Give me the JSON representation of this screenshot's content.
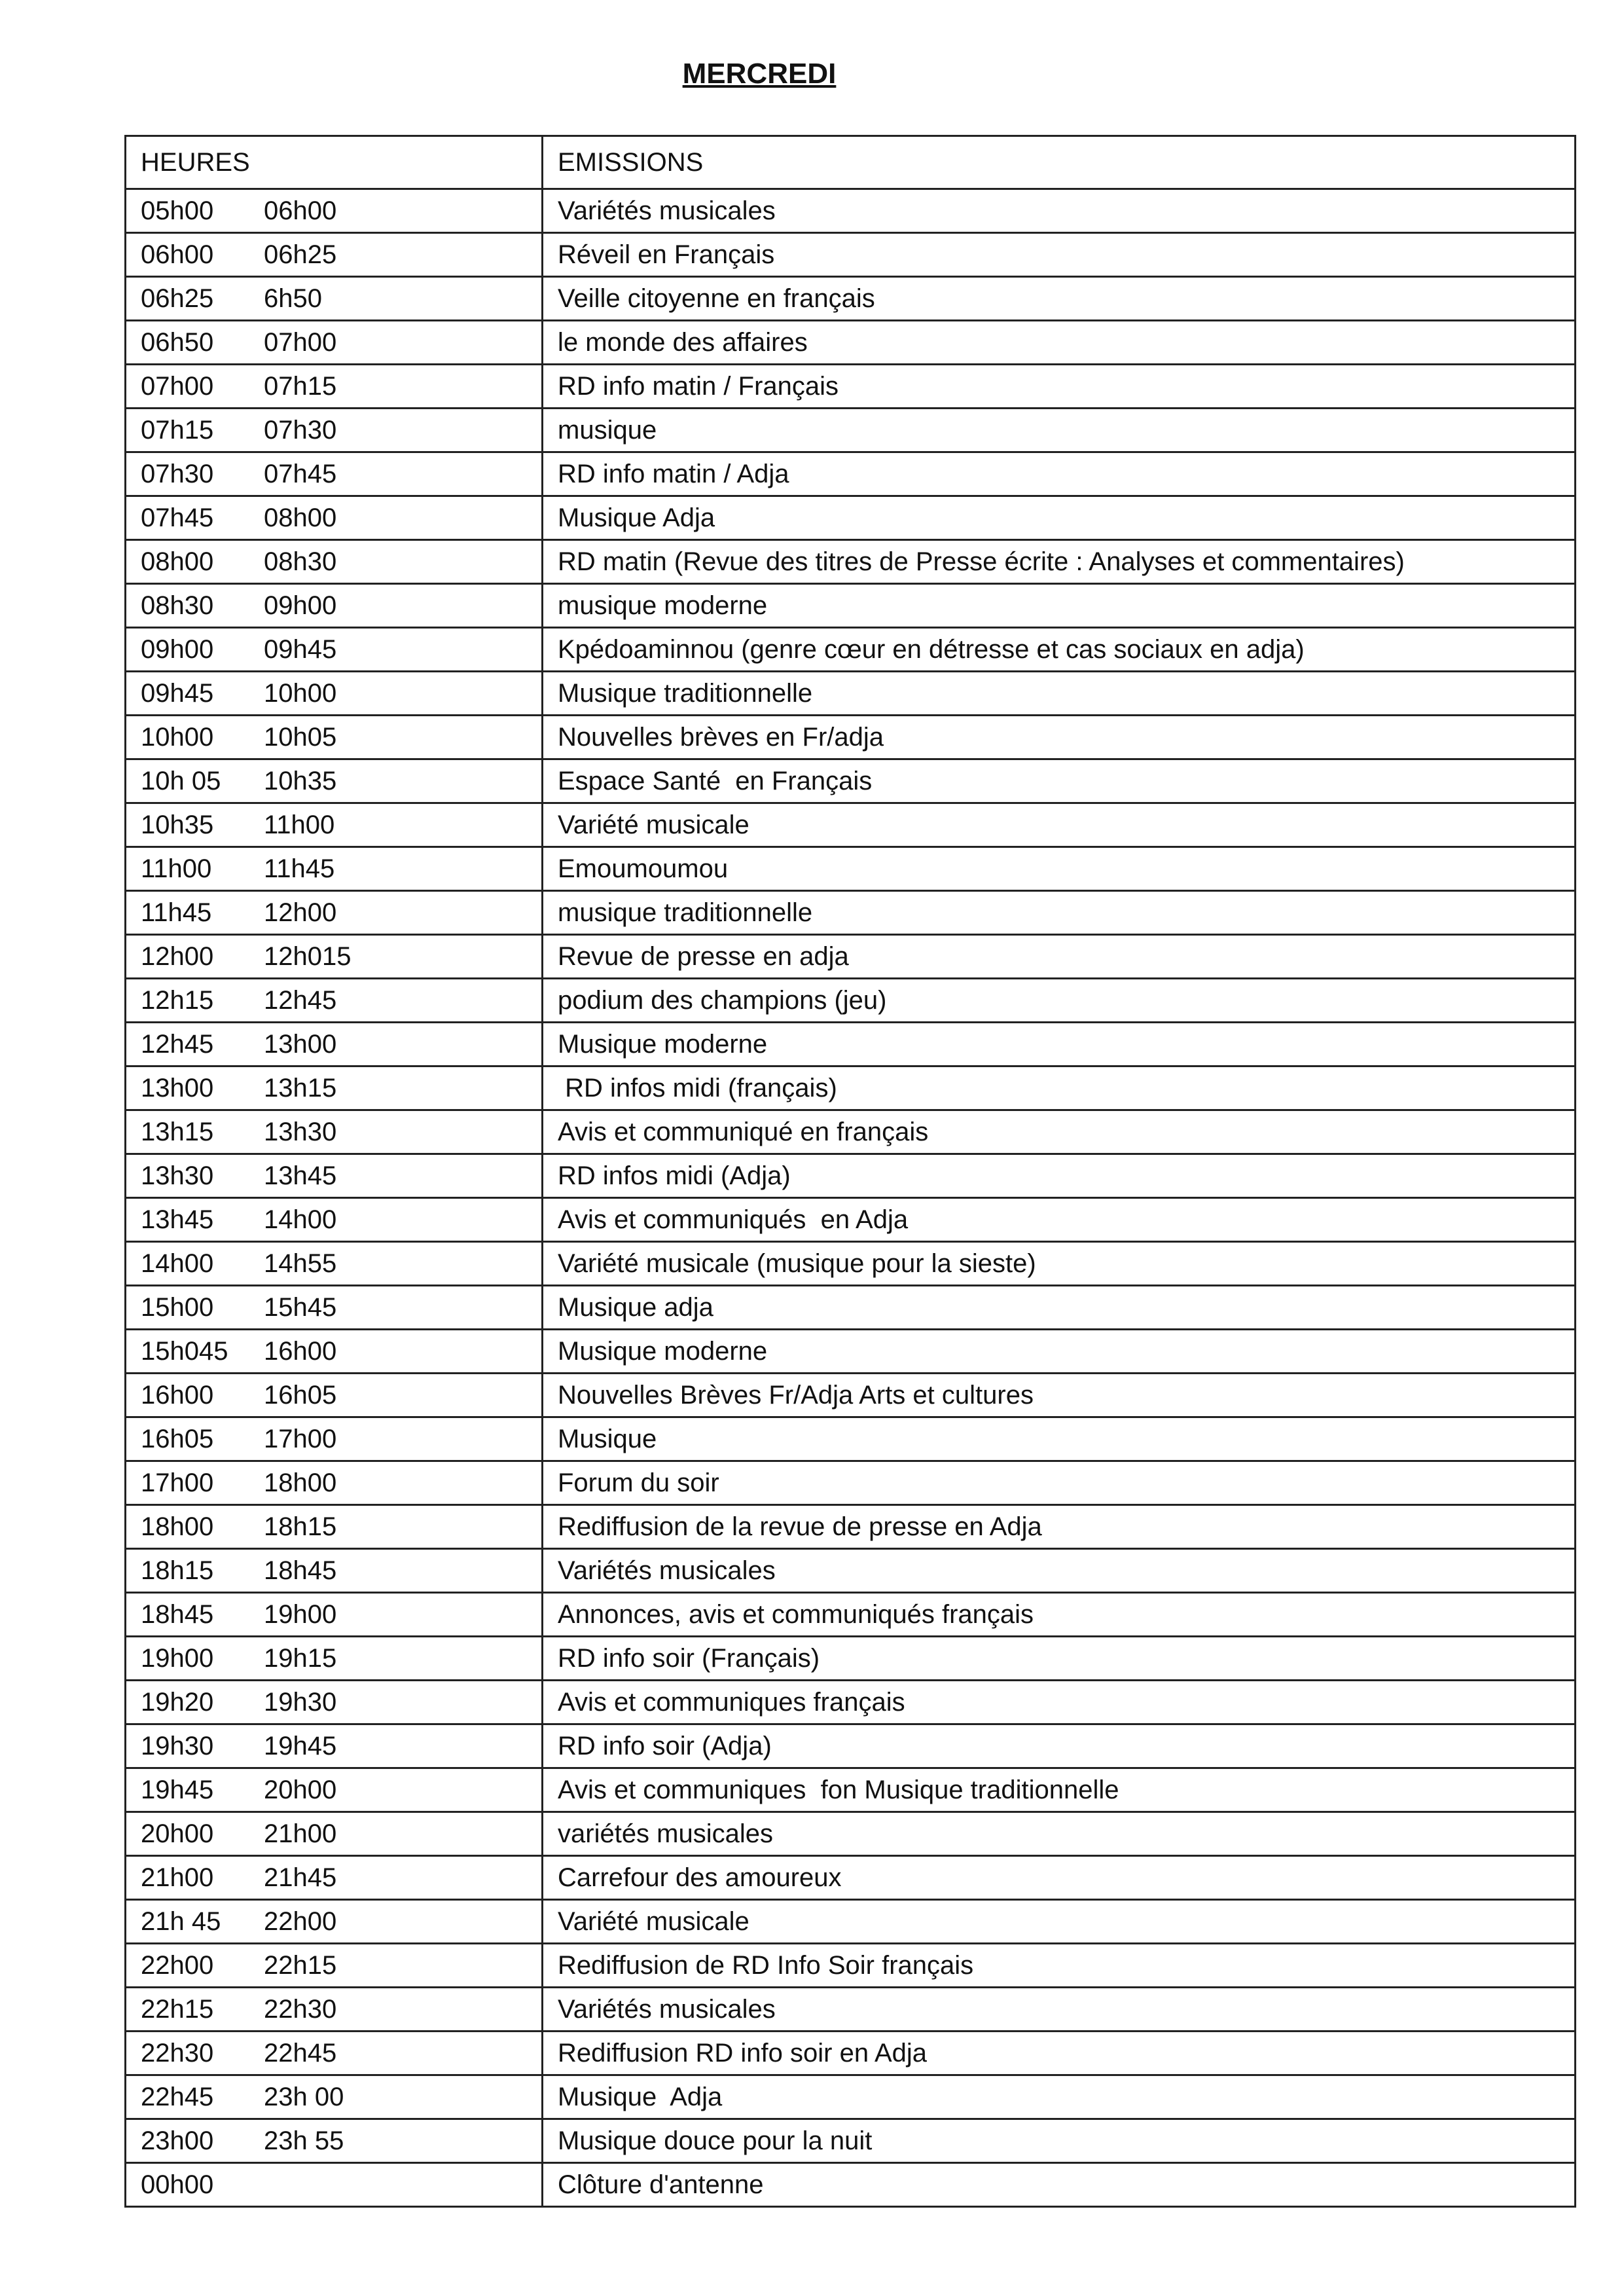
{
  "title": "MERCREDI",
  "table": {
    "headers": [
      "HEURES",
      "EMISSIONS"
    ],
    "rows": [
      {
        "start": "05h00",
        "end": "06h00",
        "emission": "Variétés musicales"
      },
      {
        "start": "06h00",
        "end": "06h25",
        "emission": "Réveil en Français"
      },
      {
        "start": "06h25",
        "end": "6h50",
        "emission": "Veille citoyenne en français"
      },
      {
        "start": "06h50",
        "end": "07h00",
        "emission": "le monde des affaires"
      },
      {
        "start": "07h00",
        "end": "07h15",
        "emission": "RD info matin / Français"
      },
      {
        "start": "07h15",
        "end": "07h30",
        "emission": "musique"
      },
      {
        "start": "07h30",
        "end": "07h45",
        "emission": "RD info matin / Adja"
      },
      {
        "start": "07h45",
        "end": "08h00",
        "emission": "Musique Adja"
      },
      {
        "start": "08h00",
        "end": "08h30",
        "emission": "RD matin (Revue des titres de Presse écrite : Analyses et commentaires)"
      },
      {
        "start": "08h30",
        "end": "09h00",
        "emission": "musique moderne"
      },
      {
        "start": "09h00",
        "end": "09h45",
        "emission": "Kpédoaminnou (genre cœur en détresse et cas sociaux en adja)"
      },
      {
        "start": "09h45",
        "end": "10h00",
        "emission": "Musique traditionnelle"
      },
      {
        "start": "10h00",
        "end": "10h05",
        "emission": "Nouvelles brèves en Fr/adja"
      },
      {
        "start": "10h 05",
        "end": "10h35",
        "emission": "Espace Santé  en Français"
      },
      {
        "start": "10h35",
        "end": "11h00",
        "emission": "Variété musicale"
      },
      {
        "start": "11h00",
        "end": "11h45",
        "emission": "Emoumoumou"
      },
      {
        "start": "11h45",
        "end": "12h00",
        "emission": "musique traditionnelle"
      },
      {
        "start": "12h00",
        "end": "12h015",
        "emission": "Revue de presse en adja"
      },
      {
        "start": "12h15",
        "end": "12h45",
        "emission": "podium des champions (jeu)"
      },
      {
        "start": "12h45",
        "end": "13h00",
        "emission": "Musique moderne"
      },
      {
        "start": "13h00",
        "end": "13h15",
        "emission": " RD infos midi (français)"
      },
      {
        "start": "13h15",
        "end": "13h30",
        "emission": "Avis et communiqué en français"
      },
      {
        "start": "13h30",
        "end": "13h45",
        "emission": "RD infos midi (Adja)"
      },
      {
        "start": "13h45",
        "end": "14h00",
        "emission": "Avis et communiqués  en Adja"
      },
      {
        "start": "14h00",
        "end": "14h55",
        "emission": "Variété musicale (musique pour la sieste)"
      },
      {
        "start": "15h00",
        "end": "15h45",
        "emission": "Musique adja"
      },
      {
        "start": "15h045",
        "end": "16h00",
        "emission": "Musique moderne"
      },
      {
        "start": "16h00",
        "end": "16h05",
        "emission": "Nouvelles Brèves Fr/Adja Arts et cultures"
      },
      {
        "start": "16h05",
        "end": "17h00",
        "emission": "Musique"
      },
      {
        "start": "17h00",
        "end": "18h00",
        "emission": "Forum du soir"
      },
      {
        "start": "18h00",
        "end": "18h15",
        "emission": "Rediffusion de la revue de presse en Adja"
      },
      {
        "start": "18h15",
        "end": "18h45",
        "emission": "Variétés musicales"
      },
      {
        "start": "18h45",
        "end": "19h00",
        "emission": "Annonces, avis et communiqués français"
      },
      {
        "start": "19h00",
        "end": "19h15",
        "emission": "RD info soir (Français)"
      },
      {
        "start": "19h20",
        "end": "19h30",
        "emission": "Avis et communiques français"
      },
      {
        "start": "19h30",
        "end": "19h45",
        "emission": "RD info soir (Adja)"
      },
      {
        "start": "19h45",
        "end": "20h00",
        "emission": "Avis et communiques  fon Musique traditionnelle"
      },
      {
        "start": "20h00",
        "end": "21h00",
        "emission": "variétés musicales"
      },
      {
        "start": "21h00",
        "end": "21h45",
        "emission": "Carrefour des amoureux"
      },
      {
        "start": "21h 45",
        "end": "22h00",
        "emission": "Variété musicale"
      },
      {
        "start": "22h00",
        "end": "22h15",
        "emission": "Rediffusion de RD Info Soir français"
      },
      {
        "start": "22h15",
        "end": "22h30",
        "emission": "Variétés musicales"
      },
      {
        "start": "22h30",
        "end": "22h45",
        "emission": "Rediffusion RD info soir en Adja"
      },
      {
        "start": "22h45",
        "end": "23h 00",
        "emission": "Musique  Adja"
      },
      {
        "start": "23h00",
        "end": "23h 55",
        "emission": "Musique douce pour la nuit"
      },
      {
        "start": "00h00",
        "end": "",
        "emission": "Clôture d'antenne"
      }
    ]
  }
}
